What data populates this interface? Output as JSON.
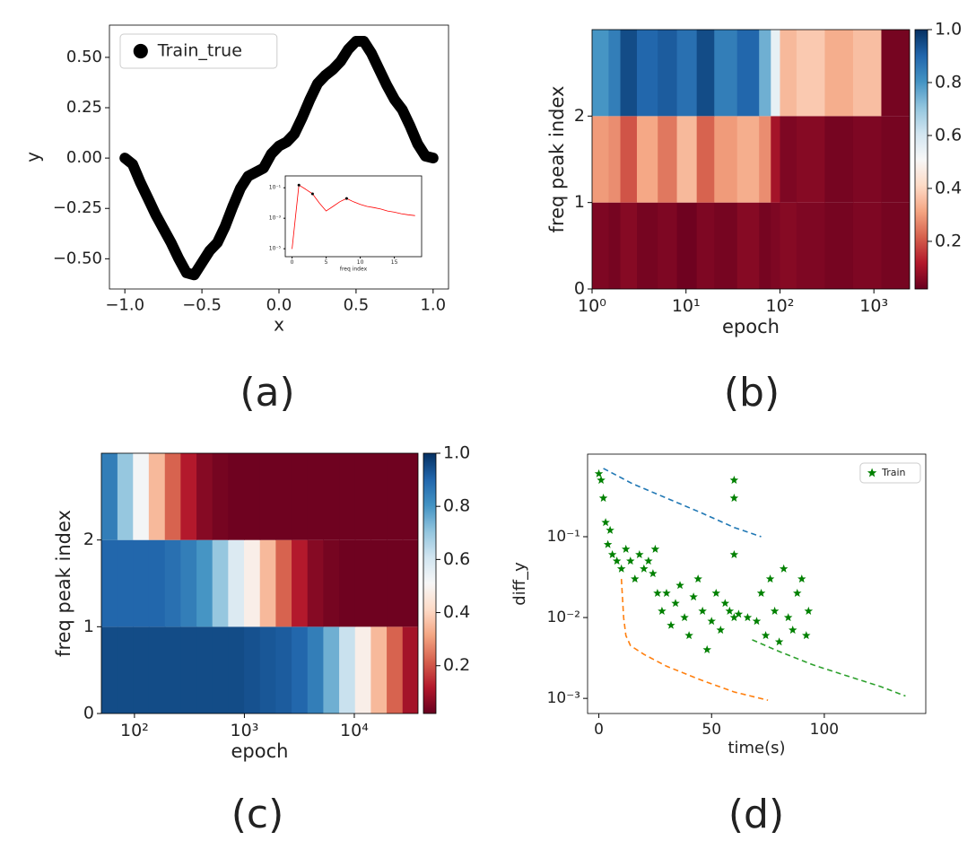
{
  "chart_data": [
    {
      "type": "line",
      "panel_label": "(a)",
      "xlabel": "x",
      "ylabel": "y",
      "xlim": [
        -1.1,
        1.1
      ],
      "ylim": [
        -0.65,
        0.66
      ],
      "xticks": [
        {
          "value": -1,
          "label": "−1.0"
        },
        {
          "value": -0.5,
          "label": "−0.5"
        },
        {
          "value": 0,
          "label": "0.0"
        },
        0.5,
        {
          "value": 1,
          "label": "1.0"
        }
      ],
      "yticks": [
        {
          "value": -0.5,
          "label": "−0.50"
        },
        {
          "value": -0.25,
          "label": "−0.25"
        },
        {
          "value": 0,
          "label": "0.00"
        },
        0.25,
        {
          "value": 0.5,
          "label": "0.50"
        }
      ],
      "legend": "upper left",
      "x": [
        -1.0,
        -0.95,
        -0.9,
        -0.85,
        -0.8,
        -0.75,
        -0.7,
        -0.65,
        -0.6,
        -0.55,
        -0.5,
        -0.45,
        -0.4,
        -0.35,
        -0.3,
        -0.25,
        -0.2,
        -0.15,
        -0.1,
        -0.05,
        0.0,
        0.05,
        0.1,
        0.15,
        0.2,
        0.25,
        0.3,
        0.35,
        0.4,
        0.45,
        0.5,
        0.55,
        0.6,
        0.65,
        0.7,
        0.75,
        0.8,
        0.85,
        0.9,
        0.95,
        1.0
      ],
      "series": [
        {
          "name": "Train_true",
          "color": "#000000",
          "marker": "dot",
          "values": [
            0.0,
            -0.03,
            -0.12,
            -0.2,
            -0.28,
            -0.35,
            -0.42,
            -0.5,
            -0.57,
            -0.58,
            -0.52,
            -0.46,
            -0.42,
            -0.34,
            -0.24,
            -0.15,
            -0.09,
            -0.07,
            -0.05,
            0.02,
            0.06,
            0.08,
            0.12,
            0.2,
            0.29,
            0.37,
            0.41,
            0.44,
            0.48,
            0.54,
            0.58,
            0.58,
            0.52,
            0.44,
            0.36,
            0.29,
            0.24,
            0.16,
            0.07,
            0.01,
            0.0
          ]
        }
      ],
      "inset": {
        "type": "line",
        "xlabel": "freq index",
        "xlim": [
          -1,
          19
        ],
        "ylim": [
          3e-06,
          0.6
        ],
        "yscale": "log",
        "xticks": [
          0,
          5,
          10,
          15
        ],
        "yticks": [
          {
            "value": 0.1,
            "label": "10⁻¹"
          },
          {
            "value": 0.001,
            "label": "10⁻³"
          },
          {
            "value": 1e-05,
            "label": "10⁻⁵"
          }
        ],
        "x": [
          0,
          1,
          2,
          3,
          4,
          5,
          6,
          7,
          8,
          9,
          10,
          11,
          12,
          13,
          14,
          15,
          16,
          17,
          18
        ],
        "series": [
          {
            "color": "#ff0000",
            "values": [
              1e-05,
              0.15,
              0.08,
              0.04,
              0.01,
              0.003,
              0.006,
              0.012,
              0.02,
              0.012,
              0.008,
              0.006,
              0.005,
              0.004,
              0.003,
              0.0025,
              0.002,
              0.0017,
              0.0015
            ]
          },
          {
            "color": "#000000",
            "marker": "dot",
            "x": [
              1,
              3,
              8
            ],
            "values": [
              0.15,
              0.04,
              0.02
            ]
          }
        ]
      }
    },
    {
      "type": "heatmap",
      "panel_label": "(b)",
      "xlabel": "epoch",
      "ylabel": "freq peak index",
      "xscale": "log",
      "xlim": [
        1,
        2400
      ],
      "ylim": [
        0,
        3
      ],
      "xticks": [
        {
          "value": 1,
          "label": "10⁰"
        },
        {
          "value": 10,
          "label": "10¹"
        },
        {
          "value": 100,
          "label": "10²"
        },
        {
          "value": 1000,
          "label": "10³"
        }
      ],
      "yticks": [
        0,
        1,
        2
      ],
      "colormap": "RdBu",
      "colorbar": {
        "lim": [
          0.02,
          1.0
        ],
        "ticks": [
          0.2,
          0.4,
          0.6,
          0.8,
          {
            "value": 1,
            "label": "1.0"
          }
        ]
      },
      "x": [
        1,
        1.5,
        2,
        3,
        5,
        8,
        13,
        20,
        35,
        60,
        80,
        100,
        150,
        300,
        600,
        1200,
        2400
      ],
      "y": [
        0,
        1,
        2,
        3
      ],
      "z": [
        [
          0.05,
          0.04,
          0.06,
          0.04,
          0.05,
          0.03,
          0.05,
          0.04,
          0.06,
          0.04,
          0.05,
          0.06,
          0.05,
          0.04,
          0.05,
          0.04
        ],
        [
          0.3,
          0.28,
          0.2,
          0.32,
          0.25,
          0.35,
          0.22,
          0.3,
          0.33,
          0.28,
          0.1,
          0.05,
          0.06,
          0.04,
          0.05,
          0.04
        ],
        [
          0.8,
          0.85,
          0.95,
          0.9,
          0.92,
          0.88,
          0.95,
          0.85,
          0.9,
          0.75,
          0.55,
          0.35,
          0.38,
          0.33,
          0.36,
          0.04
        ]
      ]
    },
    {
      "type": "heatmap",
      "panel_label": "(c)",
      "xlabel": "epoch",
      "ylabel": "freq peak index",
      "xscale": "log",
      "xlim": [
        50,
        38000
      ],
      "ylim": [
        0,
        3
      ],
      "xticks": [
        {
          "value": 100,
          "label": "10²"
        },
        {
          "value": 1000,
          "label": "10³"
        },
        {
          "value": 10000,
          "label": "10⁴"
        }
      ],
      "yticks": [
        0,
        1,
        2
      ],
      "colormap": "RdBu",
      "colorbar": {
        "lim": [
          0.02,
          1.0
        ],
        "ticks": [
          0.2,
          0.4,
          0.6,
          0.8,
          {
            "value": 1,
            "label": "1.0"
          }
        ]
      },
      "x": [
        50,
        70,
        97,
        135,
        189,
        263,
        367,
        511,
        712,
        993,
        1384,
        1929,
        2689,
        3748,
        5224,
        7281,
        10148,
        14144,
        19713,
        27476,
        38000
      ],
      "y": [
        0,
        1,
        2,
        3
      ],
      "z": [
        [
          0.95,
          0.95,
          0.95,
          0.95,
          0.95,
          0.95,
          0.95,
          0.95,
          0.95,
          0.94,
          0.93,
          0.92,
          0.9,
          0.85,
          0.75,
          0.62,
          0.48,
          0.35,
          0.22,
          0.1
        ],
        [
          0.9,
          0.9,
          0.9,
          0.9,
          0.88,
          0.85,
          0.8,
          0.7,
          0.58,
          0.48,
          0.35,
          0.22,
          0.12,
          0.06,
          0.04,
          0.03,
          0.03,
          0.03,
          0.03,
          0.03
        ],
        [
          0.85,
          0.7,
          0.52,
          0.35,
          0.22,
          0.12,
          0.06,
          0.04,
          0.03,
          0.03,
          0.03,
          0.03,
          0.03,
          0.03,
          0.03,
          0.03,
          0.03,
          0.03,
          0.03,
          0.03
        ]
      ]
    },
    {
      "type": "scatter",
      "panel_label": "(d)",
      "xlabel": "time(s)",
      "ylabel": "diff_y",
      "xlim": [
        -5,
        145
      ],
      "ylim": [
        0.00065,
        1.05
      ],
      "yscale": "log",
      "xticks": [
        0,
        50,
        100
      ],
      "yticks": [
        {
          "value": 0.001,
          "label": "10⁻³"
        },
        {
          "value": 0.01,
          "label": "10⁻²"
        },
        {
          "value": 0.1,
          "label": "10⁻¹"
        }
      ],
      "legend": "upper right",
      "series": [
        {
          "name": "Train",
          "color": "#008000",
          "marker": "star",
          "x": [
            0,
            1,
            2,
            3,
            4,
            5,
            6,
            8,
            10,
            12,
            14,
            16,
            18,
            20,
            22,
            24,
            25,
            26,
            28,
            30,
            32,
            34,
            36,
            38,
            40,
            42,
            44,
            46,
            48,
            50,
            52,
            54,
            56,
            58,
            60,
            60,
            60,
            60,
            62,
            66,
            70,
            72,
            74,
            76,
            78,
            80,
            82,
            84,
            86,
            88,
            90,
            92,
            93
          ],
          "values": [
            0.6,
            0.5,
            0.3,
            0.15,
            0.08,
            0.12,
            0.06,
            0.05,
            0.04,
            0.07,
            0.05,
            0.03,
            0.06,
            0.04,
            0.05,
            0.035,
            0.07,
            0.02,
            0.012,
            0.02,
            0.008,
            0.015,
            0.025,
            0.01,
            0.006,
            0.018,
            0.03,
            0.012,
            0.004,
            0.009,
            0.02,
            0.007,
            0.015,
            0.012,
            0.5,
            0.3,
            0.06,
            0.01,
            0.011,
            0.01,
            0.009,
            0.02,
            0.006,
            0.03,
            0.012,
            0.005,
            0.04,
            0.01,
            0.007,
            0.02,
            0.03,
            0.006,
            0.012
          ]
        },
        {
          "color": "#1f77b4",
          "style": "dashed",
          "x": [
            2,
            15,
            30,
            45,
            60,
            72
          ],
          "values": [
            0.7,
            0.45,
            0.3,
            0.2,
            0.13,
            0.1
          ]
        },
        {
          "color": "#ff7f0e",
          "style": "dashed",
          "x": [
            10,
            11,
            12,
            14,
            20,
            30,
            45,
            60,
            75
          ],
          "values": [
            0.03,
            0.01,
            0.006,
            0.0045,
            0.0035,
            0.0025,
            0.0017,
            0.0012,
            0.00095
          ]
        },
        {
          "color": "#2ca02c",
          "style": "dashed",
          "x": [
            68,
            80,
            95,
            110,
            125,
            136
          ],
          "values": [
            0.0053,
            0.0038,
            0.0026,
            0.0019,
            0.0014,
            0.00107
          ]
        }
      ]
    }
  ]
}
